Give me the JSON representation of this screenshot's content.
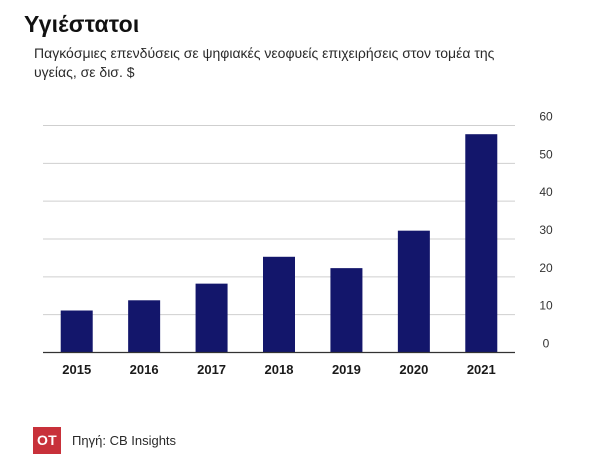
{
  "title": "Υγιέστατοι",
  "subtitle": "Παγκόσμιες επενδύσεις σε ψηφιακές νεοφυείς επιχειρήσεις στον τομέα της υγείας, σε δισ. $",
  "footer": {
    "logo_text": "OT",
    "source": "Πηγή: CB Insights"
  },
  "colors": {
    "bar": "#13166b",
    "grid": "#cfcfcf",
    "axis": "#333333",
    "logo_bg": "#c8313a"
  },
  "chart_data": {
    "type": "bar",
    "title": "Υγιέστατοι",
    "subtitle": "Παγκόσμιες επενδύσεις σε ψηφιακές νεοφυείς επιχειρήσεις στον τομέα της υγείας, σε δισ. $",
    "categories": [
      "2015",
      "2016",
      "2017",
      "2018",
      "2019",
      "2020",
      "2021"
    ],
    "values": [
      11.1,
      13.8,
      18.2,
      25.3,
      22.3,
      32.2,
      57.7
    ],
    "ylim": [
      0,
      60
    ],
    "yticks": [
      0,
      10,
      20,
      30,
      40,
      50,
      60
    ],
    "y_axis_side": "right",
    "grid": true,
    "xlabel": "",
    "ylabel": ""
  }
}
